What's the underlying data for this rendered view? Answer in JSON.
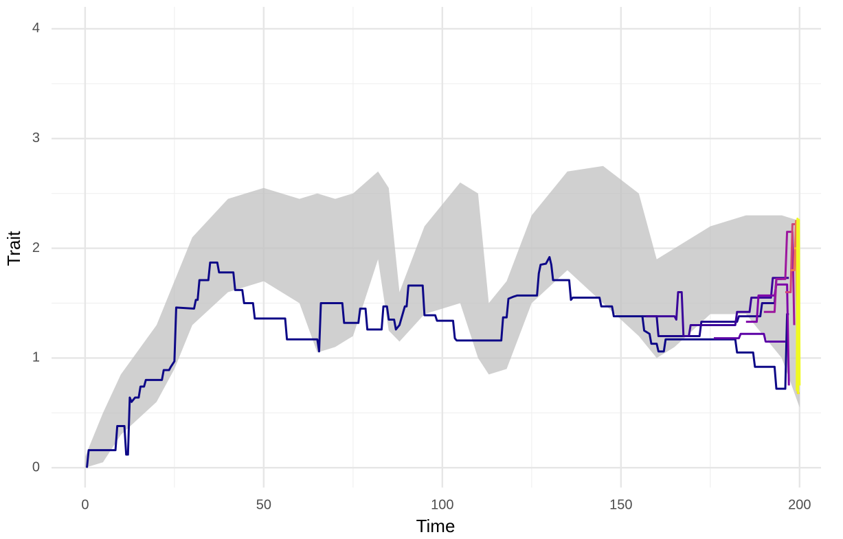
{
  "chart_data": {
    "type": "line",
    "x_label": "Time",
    "y_label": "Trait",
    "xlim": [
      -9.4,
      206
    ],
    "ylim": [
      -0.18,
      4.2
    ],
    "xticks": [
      0,
      50,
      100,
      150,
      200
    ],
    "yticks": [
      0,
      1,
      2,
      3,
      4
    ],
    "x_minor_grid": [
      25,
      75,
      125,
      175
    ],
    "y_minor_grid": [
      0.5,
      1.5,
      2.5,
      3.5
    ],
    "grid": true,
    "cloud": {
      "color": "#c0c0c0",
      "x": [
        0,
        5,
        10,
        20,
        25,
        30,
        40,
        50,
        60,
        65,
        70,
        75,
        82,
        85,
        88,
        95,
        105,
        110,
        113,
        118,
        125,
        135,
        145,
        155,
        160,
        165,
        175,
        185,
        195,
        200
      ],
      "lower": [
        0,
        0.05,
        0.3,
        0.6,
        0.9,
        1.3,
        1.6,
        1.7,
        1.5,
        1.05,
        1.1,
        1.2,
        1.9,
        1.25,
        1.15,
        1.4,
        1.5,
        1.0,
        0.85,
        0.9,
        1.5,
        1.8,
        1.5,
        1.2,
        1.0,
        1.1,
        1.4,
        1.4,
        1.0,
        0.55
      ],
      "upper": [
        0.1,
        0.5,
        0.85,
        1.3,
        1.7,
        2.1,
        2.45,
        2.55,
        2.45,
        2.5,
        2.45,
        2.5,
        2.7,
        2.55,
        1.6,
        2.2,
        2.6,
        2.5,
        1.5,
        1.7,
        2.3,
        2.7,
        2.75,
        2.5,
        1.9,
        2.0,
        2.2,
        2.3,
        2.3,
        2.25
      ]
    },
    "series": [
      {
        "color": "#0d0887",
        "x": [
          0.5,
          1,
          8.5,
          9,
          11,
          11.5,
          12,
          12.5,
          13,
          14,
          15,
          15.5,
          16.5,
          17,
          21.5,
          22,
          23.5,
          24,
          25,
          25.5,
          30.5,
          31,
          31.5,
          32,
          34.5,
          35,
          37,
          37.5,
          41.5,
          42,
          44,
          44.5,
          47,
          47.5,
          56,
          56.5,
          65,
          65.5,
          66,
          72,
          72.5,
          76.5,
          77,
          78.5,
          79,
          83,
          83.5,
          84.5,
          85,
          86.5,
          87,
          88,
          89.5,
          90,
          90.5,
          94.5,
          95,
          98,
          98.5,
          103,
          103.5,
          104,
          116.5,
          117,
          118,
          118.5,
          120,
          121,
          126.5,
          127,
          127.5,
          129,
          130,
          130.5,
          131,
          135.5,
          136,
          136.5,
          144,
          144.5,
          147.5,
          148,
          156,
          156.5,
          158,
          158.5,
          160,
          160.5,
          162,
          162.5,
          182,
          182.5,
          187,
          187.5,
          193,
          193.5,
          196,
          196.5,
          197
        ],
        "values": [
          0,
          0.16,
          0.16,
          0.38,
          0.38,
          0.12,
          0.12,
          0.64,
          0.6,
          0.64,
          0.64,
          0.74,
          0.74,
          0.8,
          0.8,
          0.89,
          0.89,
          0.92,
          0.97,
          1.46,
          1.45,
          1.53,
          1.53,
          1.71,
          1.71,
          1.87,
          1.87,
          1.78,
          1.78,
          1.62,
          1.62,
          1.5,
          1.5,
          1.36,
          1.36,
          1.17,
          1.17,
          1.06,
          1.5,
          1.5,
          1.32,
          1.32,
          1.45,
          1.45,
          1.26,
          1.26,
          1.47,
          1.47,
          1.35,
          1.35,
          1.26,
          1.3,
          1.47,
          1.47,
          1.66,
          1.66,
          1.39,
          1.39,
          1.34,
          1.34,
          1.18,
          1.16,
          1.16,
          1.37,
          1.37,
          1.54,
          1.56,
          1.57,
          1.57,
          1.77,
          1.85,
          1.86,
          1.92,
          1.85,
          1.71,
          1.71,
          1.53,
          1.55,
          1.55,
          1.47,
          1.47,
          1.38,
          1.38,
          1.25,
          1.22,
          1.13,
          1.13,
          1.06,
          1.06,
          1.17,
          1.17,
          1.05,
          1.05,
          0.92,
          0.92,
          0.72,
          0.72,
          1.4,
          1.4
        ]
      },
      {
        "color": "#1b068c",
        "x": [
          156,
          160,
          160.5,
          172,
          172.5,
          182.5,
          183,
          189,
          189.5,
          193,
          193.5,
          195
        ],
        "values": [
          1.38,
          1.38,
          1.2,
          1.2,
          1.33,
          1.33,
          1.38,
          1.38,
          1.5,
          1.5,
          1.72,
          1.72
        ]
      },
      {
        "color": "#3a049a",
        "x": [
          157,
          165,
          165.5,
          166,
          167,
          167.5,
          169,
          169.5,
          182,
          182.5,
          186,
          186.5,
          192,
          192.5,
          197
        ],
        "values": [
          1.38,
          1.38,
          1.35,
          1.6,
          1.6,
          1.2,
          1.2,
          1.3,
          1.3,
          1.42,
          1.42,
          1.55,
          1.55,
          1.73,
          1.73
        ]
      },
      {
        "color": "#5c01a6",
        "x": [
          176,
          183,
          183.5,
          190,
          190.5,
          196
        ],
        "values": [
          1.18,
          1.18,
          1.22,
          1.22,
          1.15,
          1.15
        ]
      },
      {
        "color": "#7e03a8",
        "x": [
          185,
          188,
          188.5,
          193,
          193.5,
          196.5,
          197
        ],
        "values": [
          1.33,
          1.33,
          1.57,
          1.57,
          1.67,
          1.67,
          0.75
        ]
      },
      {
        "color": "#9c179e",
        "x": [
          190,
          193,
          193.5,
          196,
          196.5,
          198,
          198.5
        ],
        "values": [
          1.42,
          1.42,
          1.72,
          1.72,
          2.15,
          2.15,
          1.3
        ]
      },
      {
        "color": "#cc4778",
        "x": [
          196,
          197.5,
          198,
          199,
          199.5
        ],
        "values": [
          1.6,
          1.6,
          2.22,
          2.22,
          0.9
        ]
      },
      {
        "color": "#ed7953",
        "x": [
          197.5,
          198.5,
          199,
          199.5
        ],
        "values": [
          1.8,
          1.8,
          2.25,
          0.7
        ]
      },
      {
        "color": "#fdb42f",
        "x": [
          198.5,
          199.3,
          199.5,
          200
        ],
        "values": [
          2.0,
          2.0,
          0.68,
          0.68
        ]
      },
      {
        "color": "#f0f921",
        "x": [
          199.2,
          199.4,
          199.6,
          199.8,
          200
        ],
        "values": [
          0.7,
          2.27,
          0.68,
          2.26,
          0.75
        ]
      }
    ]
  }
}
